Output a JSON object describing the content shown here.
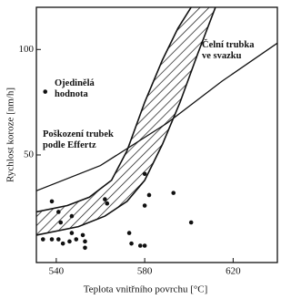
{
  "chart_data": {
    "type": "scatter",
    "x_label": "Teplota vnitřního povrchu [°C]",
    "y_label": "Rychlost koroze [nm/h]",
    "xlim": [
      531,
      640
    ],
    "ylim": [
      -1,
      120
    ],
    "xticks": [
      540,
      580,
      620
    ],
    "yticks": [
      50,
      100
    ],
    "color": "#111111",
    "points": {
      "x": [
        538,
        534,
        538,
        541,
        541,
        542,
        543,
        546,
        547,
        547,
        549,
        552,
        553,
        553,
        562,
        563,
        573,
        574,
        578,
        580,
        580,
        582,
        580,
        593,
        601,
        535
      ],
      "y": [
        28,
        10,
        10,
        10,
        23,
        18,
        8,
        9,
        13,
        21,
        10,
        12,
        9,
        6,
        29,
        27,
        13,
        8,
        7,
        7,
        26,
        31,
        41,
        32,
        18,
        80
      ]
    },
    "band_upper": {
      "x": [
        531,
        545,
        555,
        565,
        572,
        580,
        588,
        595,
        601
      ],
      "y": [
        23,
        26,
        30,
        38,
        52,
        75,
        95,
        110,
        120
      ]
    },
    "band_lower": {
      "x": [
        531,
        550,
        562,
        572,
        580,
        588,
        596,
        604,
        612
      ],
      "y": [
        12,
        16,
        21,
        28,
        38,
        55,
        75,
        98,
        120
      ]
    },
    "effertz": {
      "x": [
        531,
        560,
        590,
        615,
        640
      ],
      "y": [
        33,
        45,
        65,
        85,
        103
      ]
    },
    "annotations": [
      "Čelní trubka ve svazku",
      "Ojedinělá hodnota",
      "Poškození trubek podle Effertz"
    ]
  }
}
